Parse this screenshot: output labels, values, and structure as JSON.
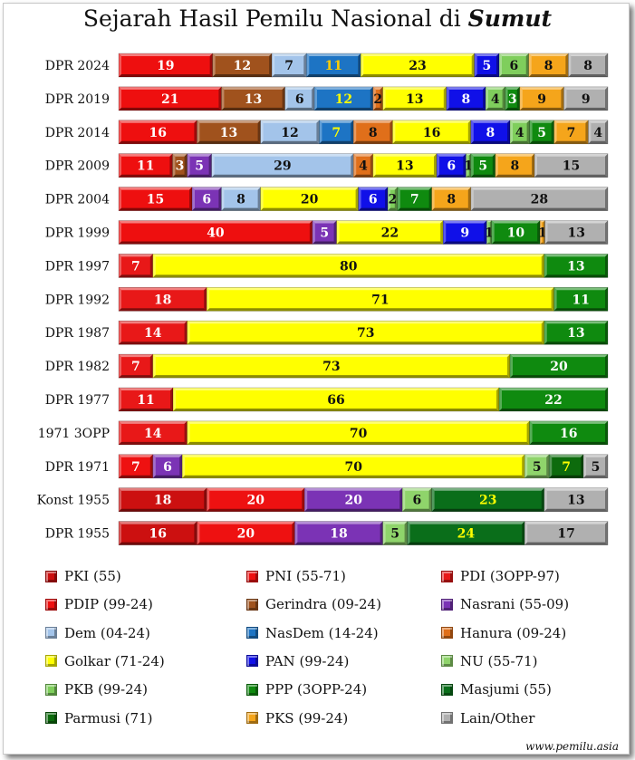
{
  "title": {
    "main": "Sejarah Hasil Pemilu Nasional di",
    "region": "Sumut"
  },
  "source": "www.pemilu.asia",
  "parties": {
    "PKI": {
      "label": "PKI (55)",
      "color": "#cc1010"
    },
    "PNI": {
      "label": "PNI (55-71)",
      "color": "#ee1111"
    },
    "PDI": {
      "label": "PDI (3OPP-97)",
      "color": "#e81818"
    },
    "PDIP": {
      "label": "PDIP (99-24)",
      "color": "#ee0f0f"
    },
    "Gerindra": {
      "label": "Gerindra (09-24)",
      "color": "#a0521d"
    },
    "Nasrani": {
      "label": "Nasrani (55-09)",
      "color": "#7b33b5"
    },
    "Dem": {
      "label": "Dem (04-24)",
      "color": "#a3c4ea"
    },
    "NasDem": {
      "label": "NasDem (14-24)",
      "color": "#1d74c4"
    },
    "Hanura": {
      "label": "Hanura (09-24)",
      "color": "#e06f1a"
    },
    "Golkar": {
      "label": "Golkar (71-24)",
      "color": "#ffff00"
    },
    "PAN": {
      "label": "PAN (99-24)",
      "color": "#1010e8"
    },
    "NU": {
      "label": "NU (55-71)",
      "color": "#8fd46b"
    },
    "PKB": {
      "label": "PKB (99-24)",
      "color": "#7fce5c"
    },
    "PPP": {
      "label": "PPP (3OPP-24)",
      "color": "#0f8a0f"
    },
    "Masjumi": {
      "label": "Masjumi (55)",
      "color": "#0a6e1a"
    },
    "Parmusi": {
      "label": "Parmusi (71)",
      "color": "#0d6b0d"
    },
    "PKS": {
      "label": "PKS (99-24)",
      "color": "#f5a51b"
    },
    "Lain": {
      "label": "Lain/Other",
      "color": "#b0b0b0"
    }
  },
  "legend_order": [
    "PKI",
    "PNI",
    "PDI",
    "PDIP",
    "Gerindra",
    "Nasrani",
    "Dem",
    "NasDem",
    "Hanura",
    "Golkar",
    "PAN",
    "NU",
    "PKB",
    "PPP",
    "Masjumi",
    "Parmusi",
    "PKS",
    "Lain"
  ],
  "chart_data": {
    "type": "bar",
    "orientation": "horizontal",
    "stacked": true,
    "normalized": true,
    "categories": [
      "DPR 2024",
      "DPR 2019",
      "DPR 2014",
      "DPR 2009",
      "DPR 2004",
      "DPR 1999",
      "DPR 1997",
      "DPR 1992",
      "DPR 1987",
      "DPR 1982",
      "DPR 1977",
      "1971 3OPP",
      "DPR 1971",
      "Konst 1955",
      "DPR 1955"
    ],
    "rows": [
      [
        [
          "PDIP",
          19
        ],
        [
          "Gerindra",
          12
        ],
        [
          "Dem",
          7
        ],
        [
          "NasDem",
          11
        ],
        [
          "Golkar",
          23
        ],
        [
          "PAN",
          5
        ],
        [
          "PKB",
          6
        ],
        [
          "PKS",
          8
        ],
        [
          "Lain",
          8
        ]
      ],
      [
        [
          "PDIP",
          21
        ],
        [
          "Gerindra",
          13
        ],
        [
          "Dem",
          6
        ],
        [
          "NasDem",
          12
        ],
        [
          "Hanura",
          2
        ],
        [
          "Golkar",
          13
        ],
        [
          "PAN",
          8
        ],
        [
          "PKB",
          4
        ],
        [
          "PPP",
          3
        ],
        [
          "PKS",
          9
        ],
        [
          "Lain",
          9
        ]
      ],
      [
        [
          "PDIP",
          16
        ],
        [
          "Gerindra",
          13
        ],
        [
          "Dem",
          12
        ],
        [
          "NasDem",
          7
        ],
        [
          "Hanura",
          8
        ],
        [
          "Golkar",
          16
        ],
        [
          "PAN",
          8
        ],
        [
          "PKB",
          4
        ],
        [
          "PPP",
          5
        ],
        [
          "PKS",
          7
        ],
        [
          "Lain",
          4
        ]
      ],
      [
        [
          "PDIP",
          11
        ],
        [
          "Gerindra",
          3
        ],
        [
          "Nasrani",
          5
        ],
        [
          "Dem",
          29
        ],
        [
          "Hanura",
          4
        ],
        [
          "Golkar",
          13
        ],
        [
          "PAN",
          6
        ],
        [
          "PKB",
          1
        ],
        [
          "PPP",
          5
        ],
        [
          "PKS",
          8
        ],
        [
          "Lain",
          15
        ]
      ],
      [
        [
          "PDIP",
          15
        ],
        [
          "Nasrani",
          6
        ],
        [
          "Dem",
          8
        ],
        [
          "Golkar",
          20
        ],
        [
          "PAN",
          6
        ],
        [
          "PKB",
          2
        ],
        [
          "PPP",
          7
        ],
        [
          "PKS",
          8
        ],
        [
          "Lain",
          28
        ]
      ],
      [
        [
          "PDIP",
          40
        ],
        [
          "Nasrani",
          5
        ],
        [
          "Golkar",
          22
        ],
        [
          "PAN",
          9
        ],
        [
          "PKB",
          1
        ],
        [
          "PPP",
          10
        ],
        [
          "PKS",
          1
        ],
        [
          "Lain",
          13
        ]
      ],
      [
        [
          "PDI",
          7
        ],
        [
          "Golkar",
          80
        ],
        [
          "PPP",
          13
        ]
      ],
      [
        [
          "PDI",
          18
        ],
        [
          "Golkar",
          71
        ],
        [
          "PPP",
          11
        ]
      ],
      [
        [
          "PDI",
          14
        ],
        [
          "Golkar",
          73
        ],
        [
          "PPP",
          13
        ]
      ],
      [
        [
          "PDI",
          7
        ],
        [
          "Golkar",
          73
        ],
        [
          "PPP",
          20
        ]
      ],
      [
        [
          "PDI",
          11
        ],
        [
          "Golkar",
          66
        ],
        [
          "PPP",
          22
        ]
      ],
      [
        [
          "PDI",
          14
        ],
        [
          "Golkar",
          70
        ],
        [
          "PPP",
          16
        ]
      ],
      [
        [
          "PNI",
          7
        ],
        [
          "Nasrani",
          6
        ],
        [
          "Golkar",
          70
        ],
        [
          "NU",
          5
        ],
        [
          "Parmusi",
          7
        ],
        [
          "Lain",
          5
        ]
      ],
      [
        [
          "PKI",
          18
        ],
        [
          "PNI",
          20
        ],
        [
          "Nasrani",
          20
        ],
        [
          "NU",
          6
        ],
        [
          "Masjumi",
          23
        ],
        [
          "Lain",
          13
        ]
      ],
      [
        [
          "PKI",
          16
        ],
        [
          "PNI",
          20
        ],
        [
          "Nasrani",
          18
        ],
        [
          "NU",
          5
        ],
        [
          "Masjumi",
          24
        ],
        [
          "Lain",
          17
        ]
      ]
    ]
  }
}
